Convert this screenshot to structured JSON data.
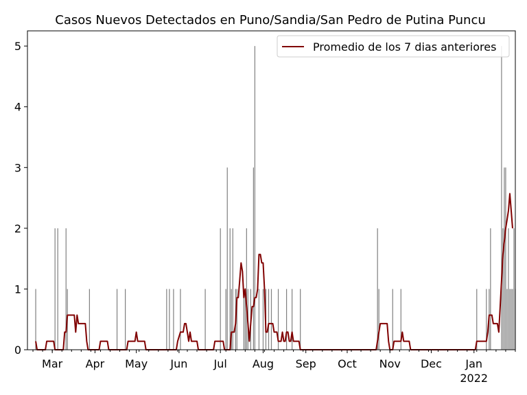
{
  "chart_data": {
    "type": "bar",
    "title": "Casos Nuevos Detectados en Puno/Sandia/San Pedro de Putina Puncu",
    "xlabel": "",
    "ylabel": "",
    "x_range": [
      "2021-02-11",
      "2022-01-31"
    ],
    "ylim": [
      0,
      5.25
    ],
    "y_ticks": [
      0,
      1,
      2,
      3,
      4,
      5
    ],
    "x_ticks": [
      {
        "date": "2021-03-01",
        "label": "Mar",
        "label2": ""
      },
      {
        "date": "2021-04-01",
        "label": "Apr",
        "label2": ""
      },
      {
        "date": "2021-05-01",
        "label": "May",
        "label2": ""
      },
      {
        "date": "2021-06-01",
        "label": "Jun",
        "label2": ""
      },
      {
        "date": "2021-07-01",
        "label": "Jul",
        "label2": ""
      },
      {
        "date": "2021-08-01",
        "label": "Aug",
        "label2": ""
      },
      {
        "date": "2021-09-01",
        "label": "Sep",
        "label2": ""
      },
      {
        "date": "2021-10-01",
        "label": "Oct",
        "label2": ""
      },
      {
        "date": "2021-11-01",
        "label": "Nov",
        "label2": ""
      },
      {
        "date": "2021-12-01",
        "label": "Dec",
        "label2": ""
      },
      {
        "date": "2022-01-01",
        "label": "Jan",
        "label2": "2022"
      }
    ],
    "legend_position": "upper-right",
    "grid": false,
    "bar_color": "#808080",
    "line_color": "#800000",
    "series": [
      {
        "name": "",
        "type": "bar",
        "points": [
          [
            "2021-02-17",
            1
          ],
          [
            "2021-03-03",
            2
          ],
          [
            "2021-03-05",
            2
          ],
          [
            "2021-03-11",
            2
          ],
          [
            "2021-03-12",
            1
          ],
          [
            "2021-03-28",
            1
          ],
          [
            "2021-04-17",
            1
          ],
          [
            "2021-04-23",
            1
          ],
          [
            "2021-05-23",
            1
          ],
          [
            "2021-05-25",
            1
          ],
          [
            "2021-05-28",
            1
          ],
          [
            "2021-06-02",
            1
          ],
          [
            "2021-06-20",
            1
          ],
          [
            "2021-07-01",
            2
          ],
          [
            "2021-07-05",
            1
          ],
          [
            "2021-07-06",
            3
          ],
          [
            "2021-07-08",
            2
          ],
          [
            "2021-07-09",
            1
          ],
          [
            "2021-07-10",
            2
          ],
          [
            "2021-07-12",
            1
          ],
          [
            "2021-07-13",
            1
          ],
          [
            "2021-07-18",
            1
          ],
          [
            "2021-07-19",
            1
          ],
          [
            "2021-07-20",
            2
          ],
          [
            "2021-07-21",
            1
          ],
          [
            "2021-07-23",
            1
          ],
          [
            "2021-07-25",
            3
          ],
          [
            "2021-07-26",
            5
          ],
          [
            "2021-07-29",
            1
          ],
          [
            "2021-08-01",
            1
          ],
          [
            "2021-08-03",
            1
          ],
          [
            "2021-08-05",
            1
          ],
          [
            "2021-08-07",
            1
          ],
          [
            "2021-08-12",
            1
          ],
          [
            "2021-08-18",
            1
          ],
          [
            "2021-08-22",
            1
          ],
          [
            "2021-08-28",
            1
          ],
          [
            "2021-10-23",
            2
          ],
          [
            "2021-10-24",
            1
          ],
          [
            "2021-11-03",
            1
          ],
          [
            "2021-11-09",
            1
          ],
          [
            "2022-01-03",
            1
          ],
          [
            "2022-01-10",
            1
          ],
          [
            "2022-01-12",
            1
          ],
          [
            "2022-01-13",
            2
          ],
          [
            "2022-01-21",
            5
          ],
          [
            "2022-01-22",
            2
          ],
          [
            "2022-01-23",
            3
          ],
          [
            "2022-01-24",
            3
          ],
          [
            "2022-01-25",
            1
          ],
          [
            "2022-01-26",
            2
          ],
          [
            "2022-01-27",
            1
          ],
          [
            "2022-01-28",
            1
          ],
          [
            "2022-01-29",
            1
          ],
          [
            "2022-01-30",
            2
          ],
          [
            "2022-01-31",
            1
          ]
        ]
      },
      {
        "name": "Promedio de los 7 dias anteriores",
        "type": "line",
        "points": [
          [
            "2021-02-17",
            0.14
          ],
          [
            "2021-02-18",
            0
          ],
          [
            "2021-02-24",
            0
          ],
          [
            "2021-02-25",
            0.14
          ],
          [
            "2021-03-02",
            0.14
          ],
          [
            "2021-03-03",
            0
          ],
          [
            "2021-03-09",
            0
          ],
          [
            "2021-03-10",
            0.29
          ],
          [
            "2021-03-11",
            0.29
          ],
          [
            "2021-03-12",
            0.57
          ],
          [
            "2021-03-17",
            0.57
          ],
          [
            "2021-03-18",
            0.29
          ],
          [
            "2021-03-19",
            0.57
          ],
          [
            "2021-03-20",
            0.43
          ],
          [
            "2021-03-25",
            0.43
          ],
          [
            "2021-03-26",
            0.14
          ],
          [
            "2021-03-27",
            0
          ],
          [
            "2021-04-04",
            0
          ],
          [
            "2021-04-05",
            0.14
          ],
          [
            "2021-04-10",
            0.14
          ],
          [
            "2021-04-11",
            0
          ],
          [
            "2021-04-24",
            0
          ],
          [
            "2021-04-25",
            0.14
          ],
          [
            "2021-04-30",
            0.14
          ],
          [
            "2021-05-01",
            0.29
          ],
          [
            "2021-05-02",
            0.14
          ],
          [
            "2021-05-07",
            0.14
          ],
          [
            "2021-05-08",
            0
          ],
          [
            "2021-05-30",
            0
          ],
          [
            "2021-05-31",
            0.14
          ],
          [
            "2021-06-02",
            0.29
          ],
          [
            "2021-06-04",
            0.29
          ],
          [
            "2021-06-05",
            0.43
          ],
          [
            "2021-06-06",
            0.43
          ],
          [
            "2021-06-07",
            0.29
          ],
          [
            "2021-06-08",
            0.14
          ],
          [
            "2021-06-09",
            0.29
          ],
          [
            "2021-06-10",
            0.14
          ],
          [
            "2021-06-14",
            0.14
          ],
          [
            "2021-06-15",
            0
          ],
          [
            "2021-06-26",
            0
          ],
          [
            "2021-06-27",
            0.14
          ],
          [
            "2021-07-03",
            0.14
          ],
          [
            "2021-07-04",
            0
          ],
          [
            "2021-07-08",
            0
          ],
          [
            "2021-07-09",
            0.29
          ],
          [
            "2021-07-11",
            0.29
          ],
          [
            "2021-07-12",
            0.43
          ],
          [
            "2021-07-13",
            0.86
          ],
          [
            "2021-07-14",
            0.86
          ],
          [
            "2021-07-15",
            1.14
          ],
          [
            "2021-07-16",
            1.43
          ],
          [
            "2021-07-17",
            1.29
          ],
          [
            "2021-07-18",
            0.86
          ],
          [
            "2021-07-19",
            1.0
          ],
          [
            "2021-07-20",
            0.71
          ],
          [
            "2021-07-21",
            0.43
          ],
          [
            "2021-07-22",
            0.14
          ],
          [
            "2021-07-23",
            0.43
          ],
          [
            "2021-07-24",
            0.71
          ],
          [
            "2021-07-25",
            0.71
          ],
          [
            "2021-07-26",
            0.86
          ],
          [
            "2021-07-27",
            0.86
          ],
          [
            "2021-07-28",
            1.0
          ],
          [
            "2021-07-29",
            1.57
          ],
          [
            "2021-07-30",
            1.57
          ],
          [
            "2021-07-31",
            1.43
          ],
          [
            "2021-08-01",
            1.43
          ],
          [
            "2021-08-02",
            1.0
          ],
          [
            "2021-08-03",
            0.29
          ],
          [
            "2021-08-04",
            0.29
          ],
          [
            "2021-08-05",
            0.43
          ],
          [
            "2021-08-08",
            0.43
          ],
          [
            "2021-08-09",
            0.29
          ],
          [
            "2021-08-11",
            0.29
          ],
          [
            "2021-08-12",
            0.14
          ],
          [
            "2021-08-14",
            0.14
          ],
          [
            "2021-08-15",
            0.29
          ],
          [
            "2021-08-16",
            0.14
          ],
          [
            "2021-08-17",
            0.14
          ],
          [
            "2021-08-18",
            0.29
          ],
          [
            "2021-08-19",
            0.29
          ],
          [
            "2021-08-20",
            0.14
          ],
          [
            "2021-08-21",
            0.14
          ],
          [
            "2021-08-22",
            0.29
          ],
          [
            "2021-08-23",
            0.14
          ],
          [
            "2021-08-27",
            0.14
          ],
          [
            "2021-08-28",
            0
          ],
          [
            "2021-10-22",
            0
          ],
          [
            "2021-10-24",
            0.29
          ],
          [
            "2021-10-25",
            0.43
          ],
          [
            "2021-10-30",
            0.43
          ],
          [
            "2021-10-31",
            0.14
          ],
          [
            "2021-11-01",
            0
          ],
          [
            "2021-11-03",
            0
          ],
          [
            "2021-11-04",
            0.14
          ],
          [
            "2021-11-09",
            0.14
          ],
          [
            "2021-11-10",
            0.29
          ],
          [
            "2021-11-11",
            0.14
          ],
          [
            "2021-11-15",
            0.14
          ],
          [
            "2021-11-16",
            0
          ],
          [
            "2022-01-02",
            0
          ],
          [
            "2022-01-03",
            0.14
          ],
          [
            "2022-01-10",
            0.14
          ],
          [
            "2022-01-11",
            0.29
          ],
          [
            "2022-01-12",
            0.57
          ],
          [
            "2022-01-14",
            0.57
          ],
          [
            "2022-01-15",
            0.43
          ],
          [
            "2022-01-18",
            0.43
          ],
          [
            "2022-01-19",
            0.29
          ],
          [
            "2022-01-20",
            0.71
          ],
          [
            "2022-01-22",
            1.57
          ],
          [
            "2022-01-24",
            2.0
          ],
          [
            "2022-01-25",
            2.14
          ],
          [
            "2022-01-26",
            2.29
          ],
          [
            "2022-01-27",
            2.57
          ],
          [
            "2022-01-28",
            2.29
          ],
          [
            "2022-01-29",
            2.0
          ]
        ]
      }
    ]
  }
}
